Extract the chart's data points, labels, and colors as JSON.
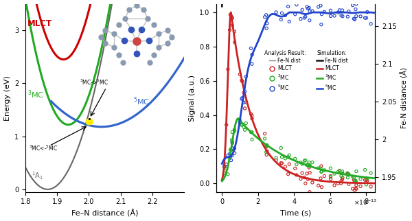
{
  "left_panel": {
    "xlabel": "Fe–N distance (Å)",
    "ylabel": "Energy (eV)",
    "xlim": [
      1.8,
      2.3
    ],
    "ylim": [
      -0.05,
      3.5
    ],
    "xticks": [
      1.8,
      1.9,
      2.0,
      2.1,
      2.2
    ],
    "yticks": [
      0,
      1,
      2,
      3
    ]
  },
  "right_panel": {
    "xlabel": "Time (s)",
    "ylabel_left": "Signal (a.u.)",
    "ylabel_right": "Fe-N distance (Å)",
    "xlim": [
      -3e-14,
      8.5e-13
    ],
    "ylim_left": [
      -0.05,
      1.05
    ],
    "ylim_right": [
      1.93,
      2.18
    ],
    "yticks_left": [
      0,
      0.2,
      0.4,
      0.6,
      0.8,
      1.0
    ],
    "yticks_right": [
      1.95,
      2.0,
      2.05,
      2.1,
      2.15
    ],
    "yticklabels_right": [
      "1.95",
      "2",
      "2.05",
      "2.1",
      "2.15"
    ]
  }
}
